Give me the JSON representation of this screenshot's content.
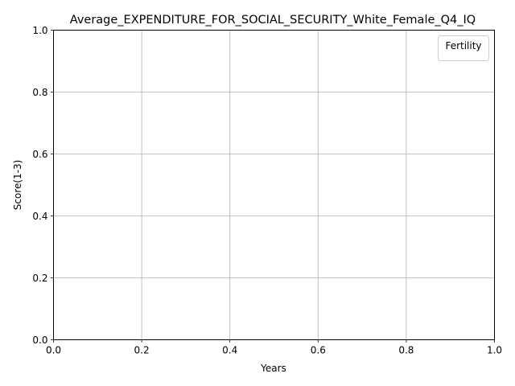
{
  "chart_data": {
    "type": "line",
    "title": "Average_EXPENDITURE_FOR_SOCIAL_SECURITY_White_Female_Q4_IQ",
    "xlabel": "Years",
    "ylabel": "Score(1-3)",
    "xlim": [
      0.0,
      1.0
    ],
    "ylim": [
      0.0,
      1.0
    ],
    "x_ticks": [
      "0.0",
      "0.2",
      "0.4",
      "0.6",
      "0.8",
      "1.0"
    ],
    "y_ticks": [
      "0.0",
      "0.2",
      "0.4",
      "0.6",
      "0.8",
      "1.0"
    ],
    "x_tick_values": [
      0.0,
      0.2,
      0.4,
      0.6,
      0.8,
      1.0
    ],
    "y_tick_values": [
      0.0,
      0.2,
      0.4,
      0.6,
      0.8,
      1.0
    ],
    "grid": true,
    "legend": {
      "title": "Fertility",
      "position": "top-right",
      "entries": []
    },
    "series": []
  },
  "colors": {
    "grid": "#b0b0b0",
    "axis": "#000000",
    "legend_border": "#cccccc"
  }
}
